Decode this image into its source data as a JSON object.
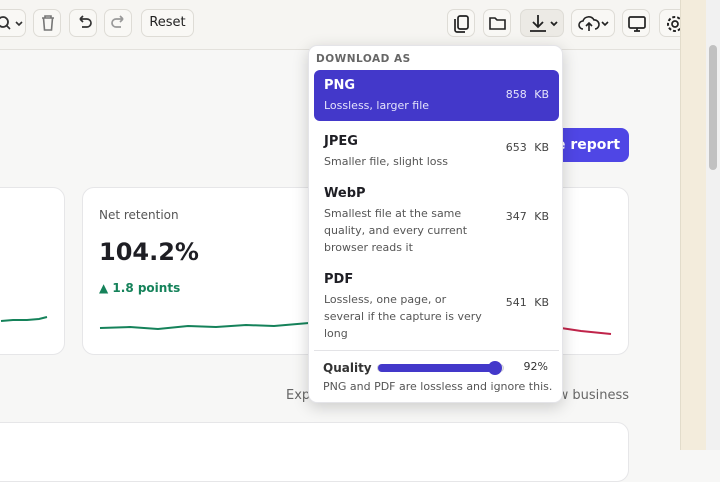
{
  "toolbar": {
    "reset": "Reset"
  },
  "page": {
    "button": "e report",
    "card": {
      "label": "Net retention",
      "value": "104.2%",
      "delta": "▲ 1.8 points"
    },
    "footer_left": "Exp",
    "footer_right": "w business"
  },
  "menu": {
    "heading": "DOWNLOAD AS",
    "options": [
      {
        "name": "PNG",
        "description": "Lossless, larger file",
        "size": "858 KB"
      },
      {
        "name": "JPEG",
        "description": "Smaller file, slight loss",
        "size": "653 KB"
      },
      {
        "name": "WebP",
        "description": "Smallest file at the same quality, and every current browser reads it",
        "size": "347 KB"
      },
      {
        "name": "PDF",
        "description": "Lossless, one page, or several if the capture is very long",
        "size": "541 KB"
      }
    ],
    "quality": {
      "label": "Quality",
      "value": 92,
      "value_label": "92%",
      "min": 0,
      "max": 100
    },
    "note": "PNG and PDF are lossless and ignore this."
  }
}
